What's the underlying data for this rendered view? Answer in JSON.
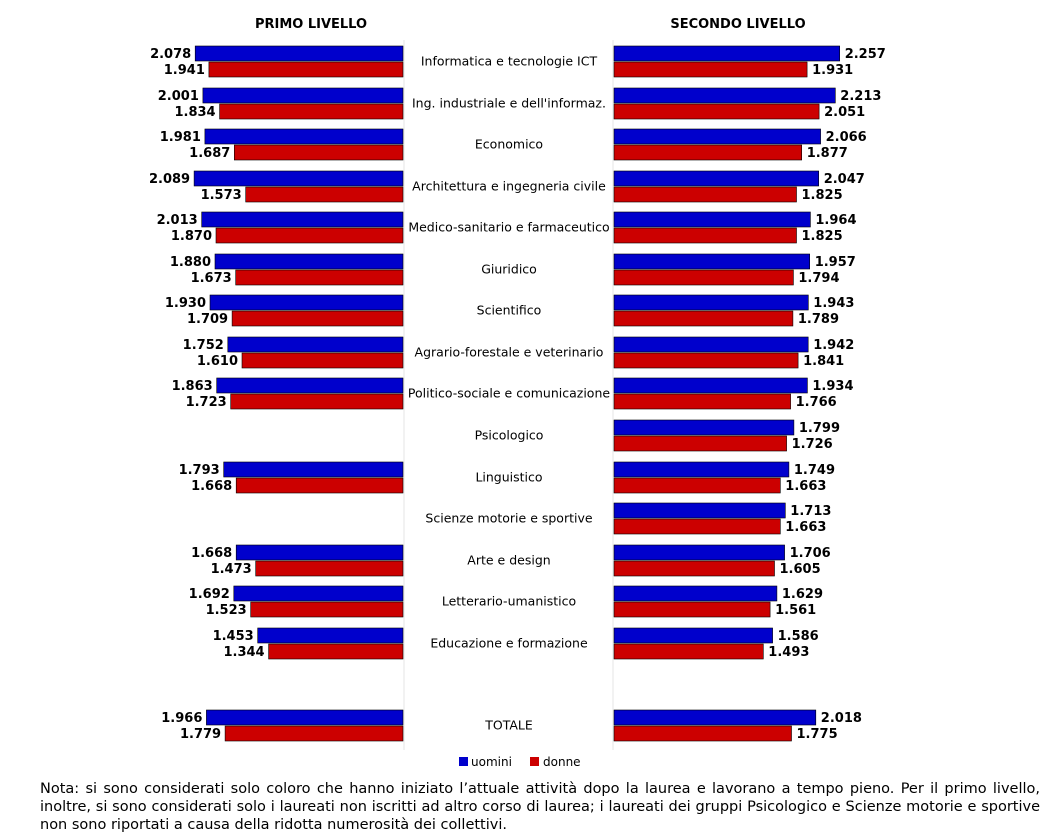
{
  "chart_data": {
    "type": "bar",
    "orientation": "horizontal",
    "categories": [
      "Informatica e tecnologie ICT",
      "Ing. industriale e dell'informaz.",
      "Economico",
      "Architettura e ingegneria civile",
      "Medico-sanitario e farmaceutico",
      "Giuridico",
      "Scientifico",
      "Agrario-forestale e veterinario",
      "Politico-sociale e comunicazione",
      "Psicologico",
      "Linguistico",
      "Scienze motorie e sportive",
      "Arte e design",
      "Letterario-umanistico",
      "Educazione e formazione",
      "TOTALE"
    ],
    "panels": [
      {
        "title": "PRIMO LIVELLO",
        "side": "left",
        "series": [
          {
            "name": "uomini",
            "color": "#0000cc",
            "values": [
              2078,
              2001,
              1981,
              2089,
              2013,
              1880,
              1930,
              1752,
              1863,
              null,
              1793,
              null,
              1668,
              1692,
              1453,
              1966
            ]
          },
          {
            "name": "donne",
            "color": "#cc0000",
            "values": [
              1941,
              1834,
              1687,
              1573,
              1870,
              1673,
              1709,
              1610,
              1723,
              null,
              1668,
              null,
              1473,
              1523,
              1344,
              1779
            ]
          }
        ]
      },
      {
        "title": "SECONDO LIVELLO",
        "side": "right",
        "series": [
          {
            "name": "uomini",
            "color": "#0000cc",
            "values": [
              2257,
              2213,
              2066,
              2047,
              1964,
              1957,
              1943,
              1942,
              1934,
              1799,
              1749,
              1713,
              1706,
              1629,
              1586,
              2018
            ]
          },
          {
            "name": "donne",
            "color": "#cc0000",
            "values": [
              1931,
              2051,
              1877,
              1825,
              1825,
              1794,
              1789,
              1841,
              1766,
              1726,
              1663,
              1663,
              1605,
              1561,
              1493,
              1775
            ]
          }
        ]
      }
    ],
    "value_format": "thousands separator '.'",
    "legend": {
      "placement": "bottom-center",
      "items": [
        "uomini",
        "donne"
      ]
    }
  },
  "note": "Nota: si sono considerati solo coloro che hanno iniziato l’attuale attività dopo la laurea e lavorano a tempo pieno. Per il primo livello, inoltre, si sono considerati solo i laureati non iscritti ad altro corso di laurea; i laureati dei gruppi Psicologico e Scienze motorie e sportive non sono riportati a causa della ridotta numerosità dei collettivi."
}
